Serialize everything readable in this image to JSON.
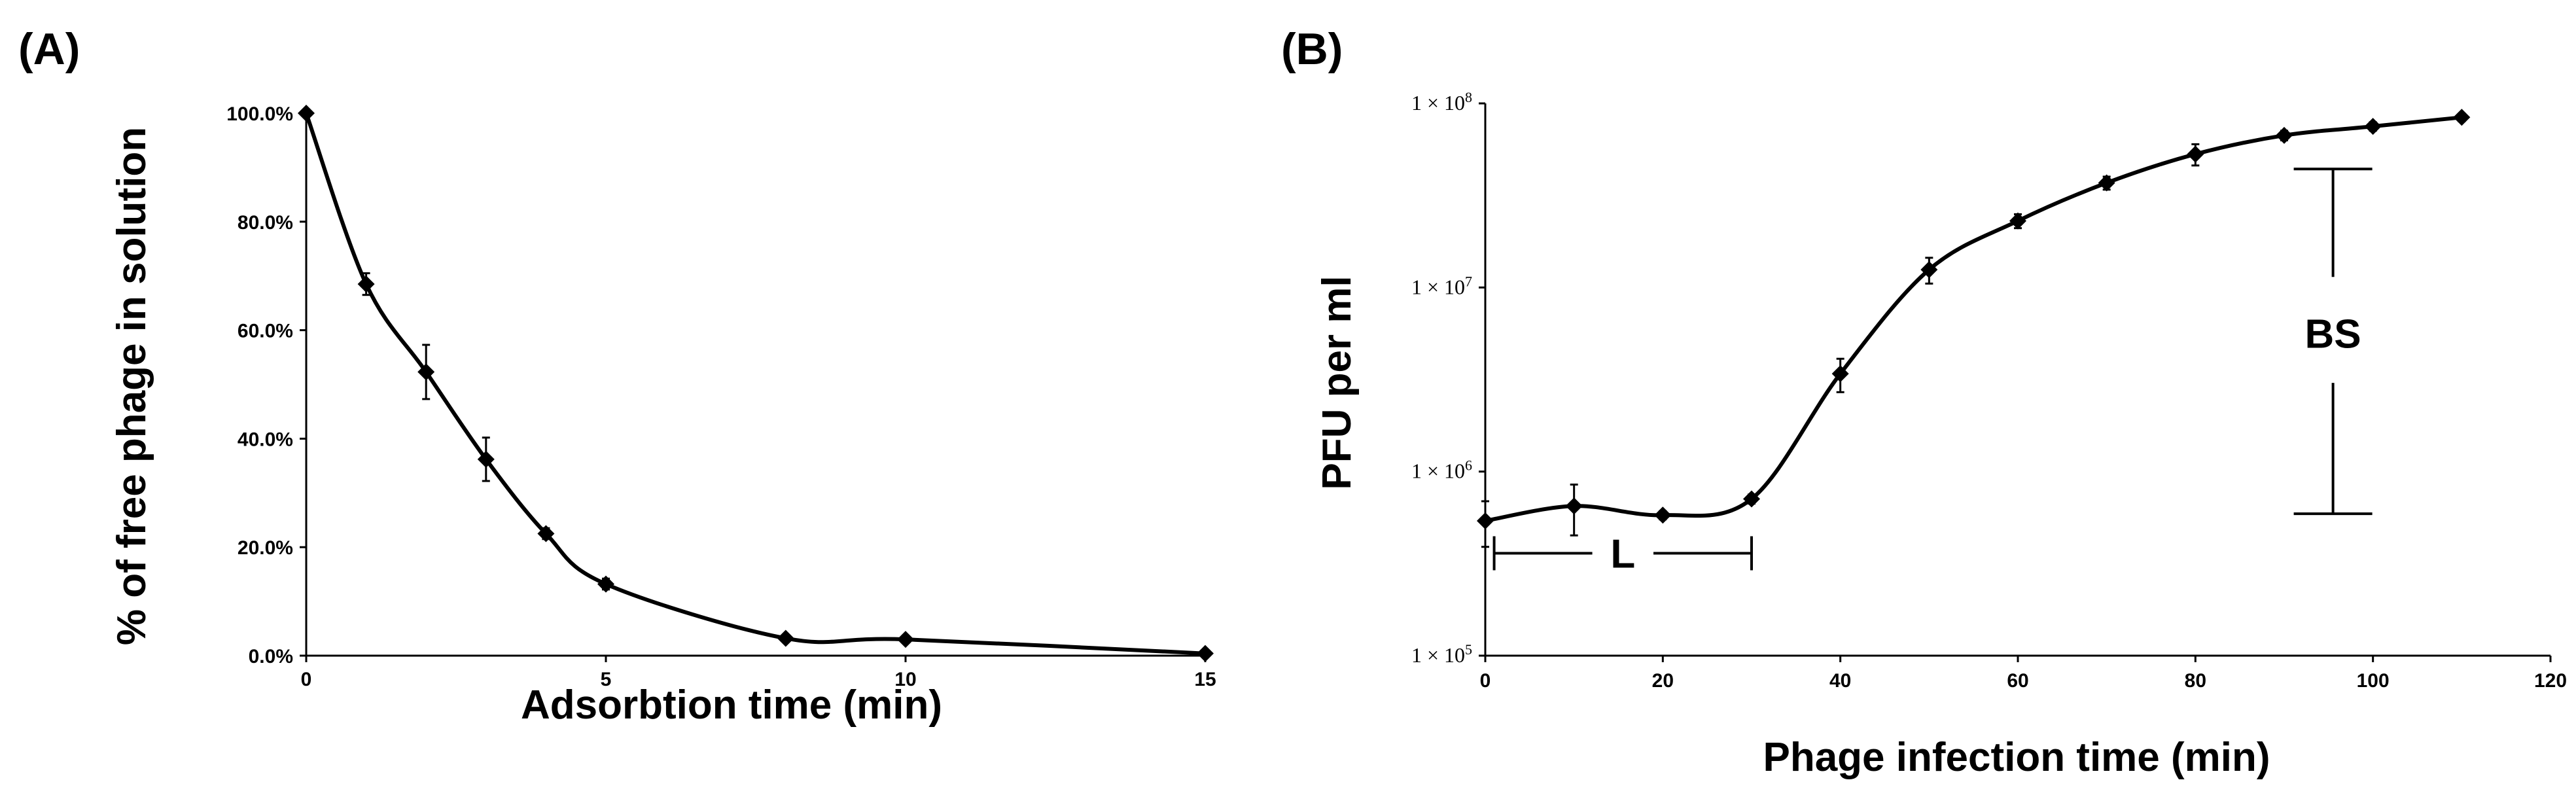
{
  "chart_data": [
    {
      "panel": "(A)",
      "type": "line",
      "xlabel": "Adsorbtion time (min)",
      "ylabel": "% of free phage in solution",
      "xlim": [
        0,
        15
      ],
      "ylim": [
        0,
        100
      ],
      "x_ticks": [
        0,
        5,
        10,
        15
      ],
      "y_ticks": [
        "0.0%",
        "20.0%",
        "40.0%",
        "60.0%",
        "80.0%",
        "100.0%"
      ],
      "y_tick_values": [
        0,
        20,
        40,
        60,
        80,
        100
      ],
      "points": [
        {
          "x": 0,
          "y": 100,
          "err": 0
        },
        {
          "x": 1,
          "y": 68.5,
          "err": 2
        },
        {
          "x": 2,
          "y": 52.3,
          "err": 5
        },
        {
          "x": 3,
          "y": 36.2,
          "err": 4
        },
        {
          "x": 4,
          "y": 22.5,
          "err": 1
        },
        {
          "x": 5,
          "y": 13.2,
          "err": 1
        },
        {
          "x": 8,
          "y": 3.2,
          "err": 0.5
        },
        {
          "x": 10,
          "y": 3.0,
          "err": 0.5
        },
        {
          "x": 15,
          "y": 0.4,
          "err": 0
        }
      ]
    },
    {
      "panel": "(B)",
      "type": "line",
      "yscale": "log",
      "xlabel": "Phage infection time (min)",
      "ylabel": "PFU per ml",
      "xlim": [
        0,
        120
      ],
      "ylim": [
        100000,
        100000000
      ],
      "x_ticks": [
        0,
        20,
        40,
        60,
        80,
        100,
        120
      ],
      "y_ticks": [
        {
          "value": 100000,
          "mant": "1 × 10",
          "exp": "5"
        },
        {
          "value": 1000000,
          "mant": "1 × 10",
          "exp": "6"
        },
        {
          "value": 10000000,
          "mant": "1 × 10",
          "exp": "7"
        },
        {
          "value": 100000000,
          "mant": "1 × 10",
          "exp": "8"
        }
      ],
      "points": [
        {
          "x": 0,
          "y": 540000,
          "err": 150000
        },
        {
          "x": 10,
          "y": 650000,
          "err": 200000
        },
        {
          "x": 20,
          "y": 580000,
          "err": 30000
        },
        {
          "x": 30,
          "y": 710000,
          "err": 40000
        },
        {
          "x": 40,
          "y": 3400000,
          "err": 700000
        },
        {
          "x": 50,
          "y": 12500000,
          "err": 2000000
        },
        {
          "x": 60,
          "y": 23000000,
          "err": 2000000
        },
        {
          "x": 70,
          "y": 37000000,
          "err": 3000000
        },
        {
          "x": 80,
          "y": 53000000,
          "err": 7000000
        },
        {
          "x": 90,
          "y": 67000000,
          "err": 4000000
        },
        {
          "x": 100,
          "y": 75000000,
          "err": 4000000
        },
        {
          "x": 110,
          "y": 84000000,
          "err": 4000000
        }
      ],
      "annotations": {
        "latent": {
          "label": "L",
          "x_start": 1,
          "x_end": 30,
          "y": 360000
        },
        "burst": {
          "label": "BS",
          "x": 95.5,
          "y_low": 590000,
          "y_high": 44000000
        }
      }
    }
  ]
}
